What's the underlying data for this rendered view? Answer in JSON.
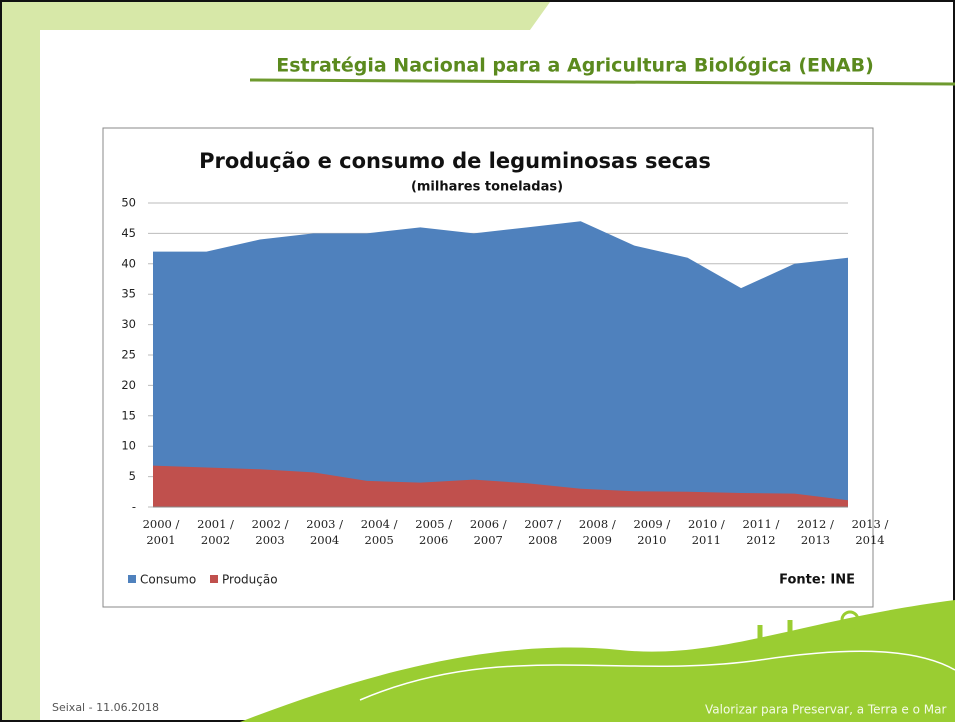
{
  "header": {
    "title": "Estratégia Nacional para a Agricultura Biológica (ENAB)"
  },
  "chart_data": {
    "type": "area",
    "title": "Produção e consumo de leguminosas secas",
    "title_unit": "(milhares toneladas)",
    "categories": [
      "2000 / 2001",
      "2001 / 2002",
      "2002 / 2003",
      "2003 / 2004",
      "2004 / 2005",
      "2005 / 2006",
      "2006 / 2007",
      "2007 / 2008",
      "2008 / 2009",
      "2009 / 2010",
      "2010 / 2011",
      "2011 / 2012",
      "2012 / 2013",
      "2013 / 2014"
    ],
    "series": [
      {
        "name": "Consumo",
        "color": "#4f81bd",
        "values": [
          42,
          42,
          44,
          45,
          45,
          46,
          45,
          46,
          47,
          43,
          41,
          36,
          40,
          41
        ]
      },
      {
        "name": "Produção",
        "color": "#c0504d",
        "values": [
          6.8,
          6.5,
          6.2,
          5.7,
          4.3,
          4,
          4.5,
          3.9,
          3,
          2.6,
          2.5,
          2.3,
          2.2,
          1.1
        ]
      }
    ],
    "ylim": [
      0,
      50
    ],
    "yticks": [
      {
        "value": 0,
        "label": "-"
      },
      5,
      10,
      15,
      20,
      25,
      30,
      35,
      40,
      45,
      50
    ],
    "grid": true,
    "source": "Fonte: INE"
  },
  "footer": {
    "left": "Seixal - 11.06.2018",
    "right": "Valorizar para Preservar, a Terra e o Mar"
  }
}
